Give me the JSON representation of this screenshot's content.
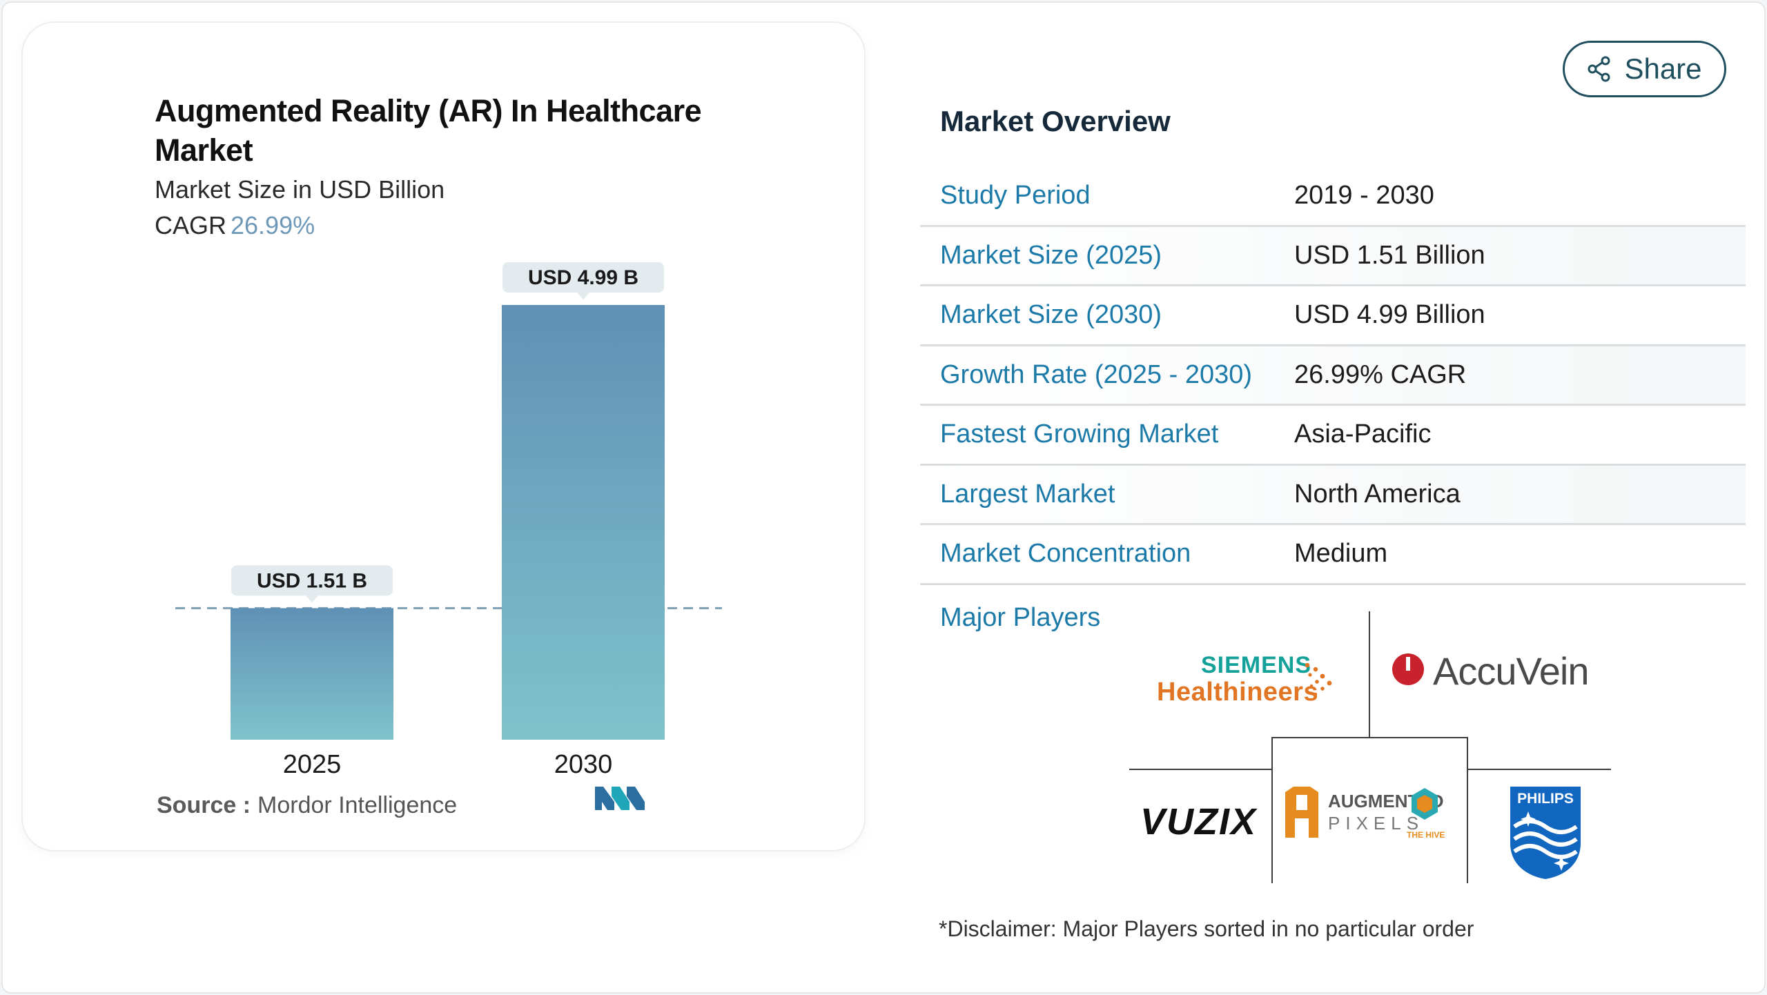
{
  "chart": {
    "title": "Augmented Reality (AR) In Healthcare Market",
    "subtitle": "Market Size in USD Billion",
    "cagr_label": "CAGR",
    "cagr_value": "26.99%",
    "source_label": "Source :",
    "source_value": "Mordor Intelligence"
  },
  "chart_data": {
    "type": "bar",
    "categories": [
      "2025",
      "2030"
    ],
    "values": [
      1.51,
      4.99
    ],
    "data_labels": [
      "USD 1.51 B",
      "USD 4.99 B"
    ],
    "title": "Augmented Reality (AR) In Healthcare Market",
    "ylabel": "Market Size in USD Billion",
    "ylim": [
      0,
      5
    ],
    "grid": false,
    "reference_line": 1.51,
    "colors": {
      "bar_top": "#5f90b5",
      "bar_bottom": "#80c3cb",
      "label_bg": "#e3ebee",
      "ref_line": "#7d9fb6"
    }
  },
  "share": {
    "label": "Share",
    "icon": "share-icon"
  },
  "overview": {
    "title": "Market Overview",
    "rows": [
      {
        "key": "Study Period",
        "value": "2019 - 2030"
      },
      {
        "key": "Market Size (2025)",
        "value": "USD 1.51 Billion"
      },
      {
        "key": "Market Size (2030)",
        "value": "USD 4.99 Billion"
      },
      {
        "key": "Growth Rate (2025 - 2030)",
        "value": "26.99% CAGR"
      },
      {
        "key": "Fastest Growing Market",
        "value": "Asia-Pacific"
      },
      {
        "key": "Largest Market",
        "value": "North America"
      },
      {
        "key": "Market Concentration",
        "value": "Medium"
      }
    ]
  },
  "players": {
    "label": "Major Players",
    "logos": {
      "siemens_line1": "SIEMENS",
      "siemens_line2": "Healthineers",
      "accuvein": "AccuVein",
      "vuzix": "VUZIX",
      "augmented_line1": "AUGMENTED",
      "augmented_line2": "PIXELS",
      "augmented_hive": "THE HIVE",
      "philips": "PHILIPS"
    }
  },
  "disclaimer": "*Disclaimer: Major Players sorted in no particular order",
  "colors": {
    "key_text": "#1c7aa9",
    "accent_dark": "#1f4f5f",
    "cagr": "#6e98b7"
  }
}
